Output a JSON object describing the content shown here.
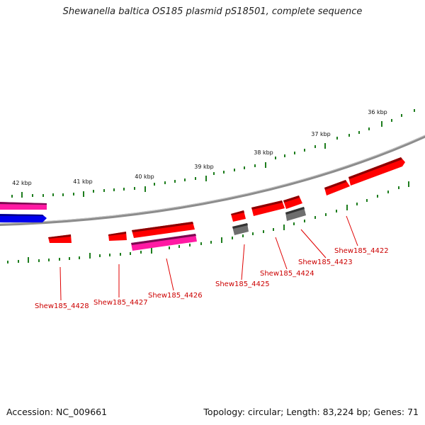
{
  "title": "Shewanella baltica OS185 plasmid pS18501, complete sequence",
  "footer": {
    "accession": "Accession: NC_009661",
    "stats": "Topology: circular; Length: 83,224 bp; Genes: 71"
  },
  "colors": {
    "backbone": "#808080",
    "tick": "#1e7d1e",
    "forward_gene": "#ff0000",
    "reverse_gene": "#ff0000",
    "pseudo_gene": "#6e6e6e",
    "pink_feature": "#ff1aa3",
    "blue_feature": "#0000ee",
    "label": "#cc0000"
  },
  "kbp_labels": [
    "36 kbp",
    "37 kbp",
    "38 kbp",
    "39 kbp",
    "40 kbp",
    "41 kbp",
    "42 kbp"
  ],
  "genes": [
    {
      "label": "Shew185_4422"
    },
    {
      "label": "Shew185_4423"
    },
    {
      "label": "Shew185_4424"
    },
    {
      "label": "Shew185_4425"
    },
    {
      "label": "Shew185_4426"
    },
    {
      "label": "Shew185_4427"
    },
    {
      "label": "Shew185_4428"
    }
  ]
}
